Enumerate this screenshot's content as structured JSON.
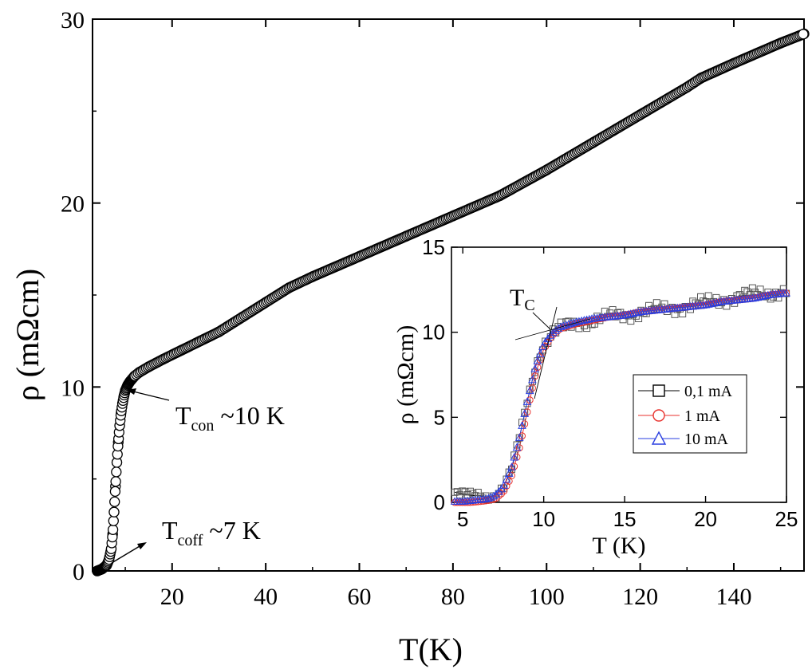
{
  "chart_data": [
    {
      "type": "scatter",
      "xlabel": "T(K)",
      "ylabel": "ρ (mΩcm)",
      "xlim": [
        3,
        155
      ],
      "ylim": [
        0,
        30
      ],
      "xticks": [
        20,
        40,
        60,
        80,
        100,
        120,
        140
      ],
      "yticks": [
        0,
        10,
        20,
        30
      ],
      "marker": "open-circle",
      "series": [
        {
          "x": [
            4,
            5,
            6,
            6.5,
            7,
            7.3,
            7.6,
            7.9,
            8.2,
            8.5,
            8.8,
            9.1,
            9.4,
            9.7,
            10,
            10.5,
            11,
            12,
            13,
            15,
            18,
            22,
            26,
            30,
            35,
            40,
            45,
            50,
            60,
            70,
            80,
            90,
            100,
            110,
            120,
            130,
            133,
            140,
            150,
            155
          ],
          "y": [
            0,
            0.1,
            0.3,
            0.6,
            1.2,
            2.0,
            3.2,
            4.6,
            5.9,
            7.0,
            7.9,
            8.6,
            9.1,
            9.5,
            9.8,
            10.1,
            10.3,
            10.6,
            10.8,
            11.1,
            11.5,
            12.0,
            12.5,
            13.0,
            13.8,
            14.6,
            15.4,
            16.0,
            17.1,
            18.2,
            19.3,
            20.4,
            21.8,
            23.3,
            24.8,
            26.3,
            26.8,
            27.6,
            28.7,
            29.2
          ]
        }
      ],
      "annotations": [
        {
          "main": "T",
          "sub": "con",
          "rest": " ~10 K"
        },
        {
          "main": "T",
          "sub": "coff",
          "rest": " ~7 K"
        }
      ]
    },
    {
      "type": "scatter",
      "xlabel": "T (K)",
      "ylabel": "ρ (mΩcm)",
      "xlim": [
        4.3,
        25
      ],
      "ylim": [
        0,
        15
      ],
      "xticks": [
        5,
        10,
        15,
        20,
        25
      ],
      "yticks": [
        0,
        5,
        10,
        15
      ],
      "legend": "center-right",
      "annotation": {
        "main": "T",
        "sub": "C"
      },
      "series": [
        {
          "name": "0,1 mA",
          "color": "#000000",
          "marker": "square",
          "x": [
            4.5,
            5.0,
            5.5,
            6.0,
            6.5,
            7.0,
            7.5,
            8.0,
            8.5,
            9.0,
            9.5,
            10.0,
            10.5,
            11.0,
            12,
            13,
            14,
            15,
            16,
            17,
            18,
            19,
            20,
            21,
            22,
            23,
            24,
            25
          ],
          "y": [
            0.6,
            0.5,
            0.4,
            0.4,
            0.3,
            0.4,
            0.9,
            1.9,
            3.8,
            6.0,
            8.0,
            9.3,
            9.9,
            10.2,
            10.5,
            10.7,
            10.9,
            11.0,
            11.2,
            11.3,
            11.4,
            11.6,
            11.7,
            11.9,
            12.1,
            12.2,
            12.3,
            12.5
          ]
        },
        {
          "name": "1 mA",
          "color": "#e8322d",
          "marker": "circle",
          "x": [
            4.5,
            5.0,
            5.5,
            6.0,
            6.5,
            7.0,
            7.5,
            8.0,
            8.5,
            9.0,
            9.5,
            10.0,
            10.5,
            11.0,
            12,
            13,
            14,
            15,
            16,
            17,
            18,
            19,
            20,
            21,
            22,
            23,
            24,
            25
          ],
          "y": [
            0.0,
            0.0,
            0.0,
            0.05,
            0.1,
            0.2,
            0.6,
            1.5,
            3.2,
            5.4,
            7.6,
            9.0,
            9.8,
            10.2,
            10.5,
            10.7,
            10.9,
            11.0,
            11.2,
            11.3,
            11.4,
            11.5,
            11.6,
            11.8,
            11.9,
            12.0,
            12.2,
            12.3
          ]
        },
        {
          "name": "10 mA",
          "color": "#2a3fe0",
          "marker": "triangle",
          "x": [
            4.5,
            5.0,
            5.5,
            6.0,
            6.5,
            7.0,
            7.5,
            8.0,
            8.5,
            9.0,
            9.5,
            10.0,
            10.5,
            11.0,
            12,
            13,
            14,
            15,
            16,
            17,
            18,
            19,
            20,
            21,
            22,
            23,
            24,
            25
          ],
          "y": [
            0.05,
            0.05,
            0.1,
            0.15,
            0.2,
            0.4,
            0.9,
            2.0,
            3.8,
            6.0,
            8.0,
            9.3,
            9.9,
            10.3,
            10.6,
            10.8,
            10.9,
            11.0,
            11.2,
            11.3,
            11.4,
            11.5,
            11.6,
            11.8,
            11.9,
            12.0,
            12.2,
            12.3
          ]
        }
      ]
    }
  ]
}
